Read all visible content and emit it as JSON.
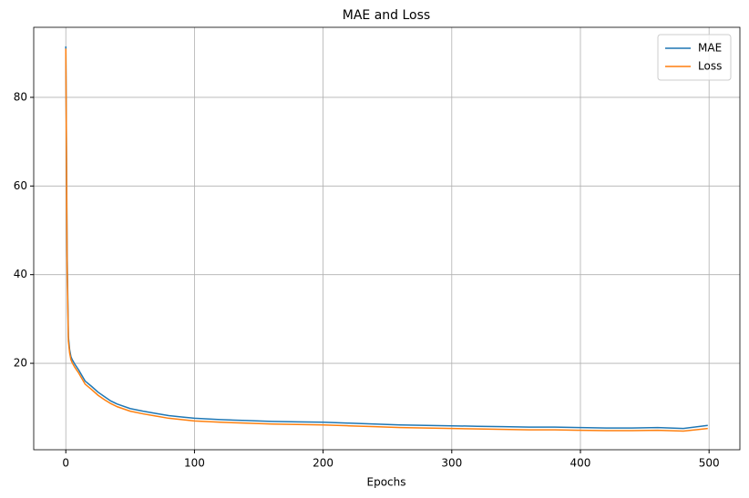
{
  "chart_data": {
    "type": "line",
    "title": "MAE and Loss",
    "x_label": "Epochs",
    "x": [
      0,
      1,
      2,
      3,
      4,
      5,
      7,
      10,
      15,
      20,
      25,
      30,
      35,
      40,
      50,
      60,
      70,
      80,
      90,
      100,
      120,
      140,
      160,
      180,
      200,
      220,
      240,
      260,
      280,
      300,
      320,
      340,
      360,
      380,
      400,
      420,
      440,
      460,
      480,
      499
    ],
    "series": [
      {
        "name": "MAE",
        "color": "#1f77b4",
        "values": [
          91.5,
          45,
          26,
          23,
          21.5,
          20.8,
          19.8,
          18.5,
          16,
          14.8,
          13.5,
          12.5,
          11.5,
          10.8,
          9.8,
          9.2,
          8.7,
          8.2,
          7.9,
          7.6,
          7.3,
          7.1,
          6.9,
          6.8,
          6.7,
          6.5,
          6.3,
          6.1,
          6.0,
          5.9,
          5.8,
          5.7,
          5.6,
          5.6,
          5.5,
          5.4,
          5.4,
          5.5,
          5.3,
          6.0
        ]
      },
      {
        "name": "Loss",
        "color": "#ff7f0e",
        "values": [
          91,
          42,
          25,
          22.3,
          20.8,
          20.1,
          19.1,
          17.8,
          15.3,
          14.1,
          12.8,
          11.8,
          10.9,
          10.2,
          9.2,
          8.6,
          8.1,
          7.6,
          7.3,
          7.0,
          6.7,
          6.5,
          6.3,
          6.2,
          6.1,
          5.9,
          5.7,
          5.5,
          5.4,
          5.3,
          5.2,
          5.1,
          5.0,
          5.0,
          4.9,
          4.8,
          4.8,
          4.9,
          4.7,
          5.3
        ]
      }
    ],
    "xlim": [
      -24.95,
      523.95
    ],
    "xticks": [
      0,
      100,
      200,
      300,
      400,
      500
    ],
    "ylim": [
      0.5,
      95.8
    ],
    "yticks": [
      20,
      40,
      60,
      80
    ],
    "grid": true,
    "legend": "upper-right"
  }
}
